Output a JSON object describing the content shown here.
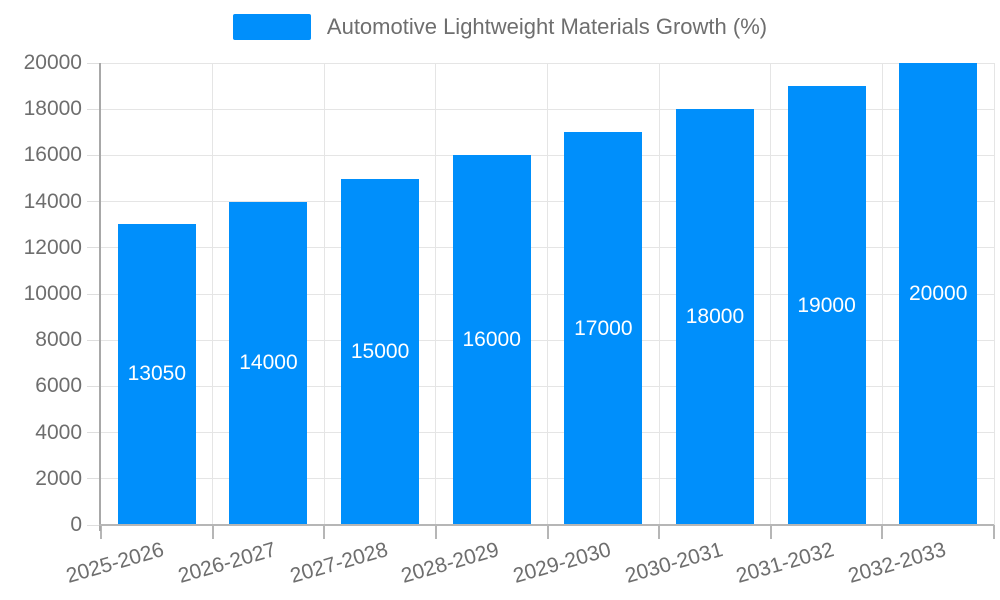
{
  "chart_data": {
    "type": "bar",
    "title": "Automotive Lightweight Materials Growth (%)",
    "categories": [
      "2025-2026",
      "2026-2027",
      "2027-2028",
      "2028-2029",
      "2029-2030",
      "2030-2031",
      "2031-2032",
      "2032-2033"
    ],
    "values": [
      13050,
      14000,
      15000,
      16000,
      17000,
      18000,
      19000,
      20000
    ],
    "data_labels": [
      "13050",
      "14000",
      "15000",
      "16000",
      "17000",
      "18000",
      "19000",
      "20000"
    ],
    "xlabel": "",
    "ylabel": "",
    "ylim": [
      0,
      20000
    ],
    "ytick_step": 2000,
    "ytick_labels": [
      "0",
      "2000",
      "4000",
      "6000",
      "8000",
      "10000",
      "12000",
      "14000",
      "16000",
      "18000",
      "20000"
    ],
    "grid": true,
    "legend_position": "top"
  },
  "legend": {
    "label": "Automotive Lightweight Materials Growth (%)"
  },
  "colors": {
    "bar": "#008FFB",
    "value_label": "#ffffff",
    "axis_label": "#6e6e6e",
    "legend_label": "#6e6e6e",
    "grid": "#e5e5e5",
    "y_tick": "#dedede",
    "x_axis_line": "#b6b6b6",
    "y_axis_line": "#a8a8a8",
    "x_tick": "#b6b6b6"
  }
}
